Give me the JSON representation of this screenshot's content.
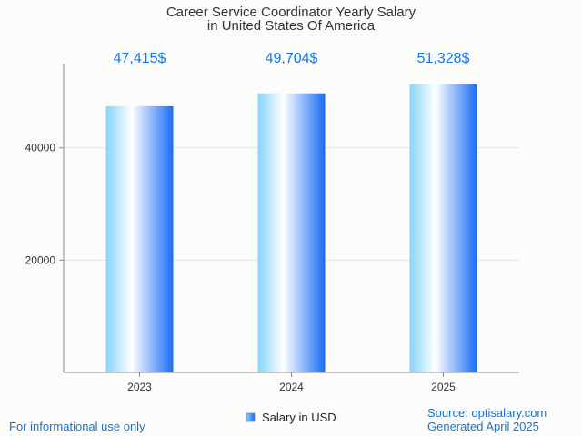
{
  "title_line1": "Career Service Coordinator Yearly Salary",
  "title_line2": "in United States Of America",
  "legend_label": "Salary in USD",
  "footer_left": "For informational use only",
  "source_line": "Source: optisalary.com",
  "generated_line": "Generated April 2025",
  "colors": {
    "value_label": "#1a73e8",
    "bar_edge": "#87d4fa",
    "bar_center": "#ffffff",
    "bar_right": "#1a6cf5",
    "footer_text": "#1a73c9",
    "grid": "#e4e4e4",
    "axis": "#888888"
  },
  "chart_data": {
    "type": "bar",
    "categories": [
      "2023",
      "2024",
      "2025"
    ],
    "values": [
      47415,
      49704,
      51328
    ],
    "value_labels": [
      "47,415$",
      "49,704$",
      "51,328$"
    ],
    "y_ticks": [
      20000,
      40000
    ],
    "y_tick_labels": [
      "20000",
      "40000"
    ],
    "ylim": [
      0,
      55000
    ],
    "grid": true,
    "legend_position": "bottom-center",
    "series": [
      {
        "name": "Salary in USD",
        "values": [
          47415,
          49704,
          51328
        ]
      }
    ]
  }
}
